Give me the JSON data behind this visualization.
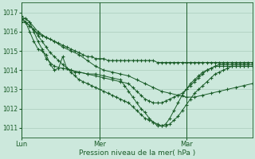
{
  "background_color": "#cce8dc",
  "grid_color": "#aaccbb",
  "line_color": "#1a5c28",
  "xlabel_text": "Pression niveau de la mer( hPa )",
  "xtick_labels": [
    "Lun",
    "Mer",
    "Mar"
  ],
  "ylim": [
    1010.5,
    1017.5
  ],
  "yticks": [
    1011,
    1012,
    1013,
    1014,
    1015,
    1016,
    1017
  ],
  "series": [
    {
      "x": [
        0,
        1,
        2,
        3,
        4,
        5,
        6,
        7,
        8,
        9,
        10,
        11,
        12,
        13,
        14,
        15,
        16,
        17,
        18,
        19,
        20,
        21,
        22,
        23,
        24,
        25,
        26,
        27,
        28,
        29,
        30,
        31,
        32,
        33,
        34,
        35,
        36,
        37,
        38,
        39,
        40,
        41,
        42,
        43,
        44,
        45,
        46,
        47,
        48,
        49,
        50,
        51,
        52,
        53,
        54,
        55,
        56
      ],
      "y": [
        1016.7,
        1016.5,
        1016.3,
        1016.1,
        1015.9,
        1015.8,
        1015.7,
        1015.6,
        1015.5,
        1015.4,
        1015.3,
        1015.2,
        1015.1,
        1015.0,
        1014.9,
        1014.8,
        1014.7,
        1014.7,
        1014.6,
        1014.6,
        1014.6,
        1014.5,
        1014.5,
        1014.5,
        1014.5,
        1014.5,
        1014.5,
        1014.5,
        1014.5,
        1014.5,
        1014.5,
        1014.5,
        1014.5,
        1014.4,
        1014.4,
        1014.4,
        1014.4,
        1014.4,
        1014.4,
        1014.4,
        1014.4,
        1014.4,
        1014.4,
        1014.4,
        1014.4,
        1014.4,
        1014.4,
        1014.4,
        1014.4,
        1014.4,
        1014.4,
        1014.4,
        1014.4,
        1014.4,
        1014.4,
        1014.4,
        1014.4
      ]
    },
    {
      "x": [
        0,
        2,
        4,
        6,
        8,
        10,
        12,
        14,
        16,
        18,
        20,
        22,
        24,
        26,
        28,
        30,
        32,
        34,
        36,
        38,
        40,
        42,
        44,
        46,
        48,
        50,
        52,
        54,
        56
      ],
      "y": [
        1016.8,
        1016.5,
        1016.0,
        1015.7,
        1015.5,
        1015.2,
        1015.0,
        1014.8,
        1014.5,
        1014.2,
        1014.0,
        1013.9,
        1013.8,
        1013.7,
        1013.5,
        1013.3,
        1013.1,
        1012.9,
        1012.8,
        1012.7,
        1012.6,
        1012.6,
        1012.7,
        1012.8,
        1012.9,
        1013.0,
        1013.1,
        1013.2,
        1013.3
      ]
    },
    {
      "x": [
        0,
        1,
        2,
        3,
        4,
        5,
        6,
        8,
        10,
        12,
        14,
        16,
        18,
        20,
        22,
        24,
        26,
        27,
        28,
        29,
        30,
        31,
        32,
        33,
        34,
        35,
        36,
        37,
        38,
        39,
        40,
        41,
        42,
        43,
        44,
        45,
        46,
        47,
        48,
        49,
        50,
        51,
        52,
        53,
        54,
        55,
        56
      ],
      "y": [
        1016.6,
        1016.7,
        1016.5,
        1016.0,
        1015.5,
        1015.1,
        1014.6,
        1014.2,
        1014.1,
        1014.0,
        1013.9,
        1013.8,
        1013.7,
        1013.6,
        1013.5,
        1013.4,
        1013.3,
        1013.1,
        1012.9,
        1012.7,
        1012.5,
        1012.4,
        1012.3,
        1012.3,
        1012.3,
        1012.4,
        1012.5,
        1012.6,
        1012.7,
        1012.8,
        1013.0,
        1013.2,
        1013.4,
        1013.6,
        1013.8,
        1014.0,
        1014.1,
        1014.2,
        1014.3,
        1014.3,
        1014.3,
        1014.3,
        1014.3,
        1014.3,
        1014.3,
        1014.3,
        1014.3
      ]
    },
    {
      "x": [
        0,
        1,
        2,
        3,
        4,
        5,
        6,
        7,
        8,
        9,
        10,
        11,
        12,
        13,
        14,
        16,
        18,
        20,
        22,
        24,
        25,
        26,
        27,
        28,
        29,
        30,
        31,
        32,
        33,
        34,
        35,
        36,
        37,
        38,
        39,
        40,
        41,
        42,
        43,
        44,
        45,
        46,
        47,
        48,
        49,
        50,
        51,
        52,
        53,
        54,
        55,
        56
      ],
      "y": [
        1016.5,
        1016.5,
        1016.0,
        1015.5,
        1015.1,
        1015.0,
        1014.8,
        1014.3,
        1014.0,
        1014.1,
        1014.7,
        1014.1,
        1014.0,
        1013.9,
        1013.9,
        1013.8,
        1013.8,
        1013.7,
        1013.6,
        1013.5,
        1013.2,
        1012.9,
        1012.6,
        1012.3,
        1012.0,
        1011.8,
        1011.5,
        1011.3,
        1011.1,
        1011.1,
        1011.2,
        1011.5,
        1011.9,
        1012.3,
        1012.7,
        1013.0,
        1013.3,
        1013.5,
        1013.7,
        1013.9,
        1014.0,
        1014.1,
        1014.2,
        1014.2,
        1014.2,
        1014.2,
        1014.2,
        1014.2,
        1014.2,
        1014.2,
        1014.2,
        1014.2
      ]
    },
    {
      "x": [
        0,
        1,
        2,
        3,
        4,
        5,
        6,
        7,
        8,
        9,
        10,
        11,
        12,
        13,
        14,
        15,
        16,
        17,
        18,
        19,
        20,
        21,
        22,
        23,
        24,
        25,
        26,
        27,
        28,
        29,
        30,
        31,
        32,
        33,
        34,
        35,
        36,
        37,
        38,
        39,
        40,
        41,
        42,
        43,
        44,
        45,
        46,
        47,
        48,
        49,
        50,
        51,
        52,
        53,
        54,
        55,
        56
      ],
      "y": [
        1016.7,
        1016.5,
        1016.3,
        1016.1,
        1015.8,
        1015.5,
        1015.2,
        1014.9,
        1014.7,
        1014.5,
        1014.3,
        1014.1,
        1013.9,
        1013.7,
        1013.5,
        1013.4,
        1013.3,
        1013.2,
        1013.1,
        1013.0,
        1012.9,
        1012.8,
        1012.7,
        1012.6,
        1012.5,
        1012.4,
        1012.3,
        1012.1,
        1011.9,
        1011.7,
        1011.5,
        1011.4,
        1011.3,
        1011.2,
        1011.1,
        1011.1,
        1011.2,
        1011.4,
        1011.6,
        1011.9,
        1012.2,
        1012.5,
        1012.8,
        1013.0,
        1013.2,
        1013.4,
        1013.6,
        1013.8,
        1013.9,
        1014.0,
        1014.1,
        1014.2,
        1014.2,
        1014.2,
        1014.2,
        1014.2,
        1014.2
      ]
    }
  ],
  "vline_x": [
    0,
    19,
    40
  ],
  "xtick_x": [
    0,
    19,
    40
  ]
}
